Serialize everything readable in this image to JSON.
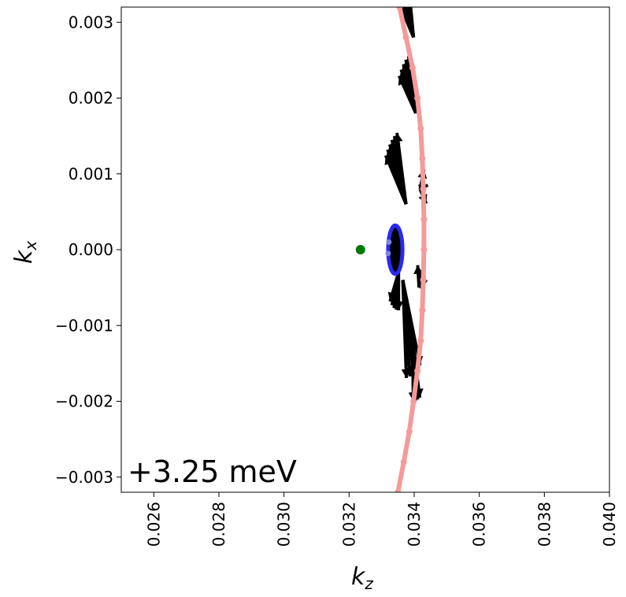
{
  "chart_data": {
    "type": "scatter",
    "title": "",
    "xlabel": "k",
    "xlabel_sub": "z",
    "ylabel": "k",
    "ylabel_sub": "x",
    "xlim": [
      0.025,
      0.04
    ],
    "ylim": [
      -0.0032,
      0.0032
    ],
    "xticks": [
      0.026,
      0.028,
      0.03,
      0.032,
      0.034,
      0.036,
      0.038,
      0.04
    ],
    "xtick_labels": [
      "0.026",
      "0.028",
      "0.030",
      "0.032",
      "0.034",
      "0.036",
      "0.038",
      "0.040"
    ],
    "yticks": [
      0.003,
      0.002,
      0.001,
      0.0,
      -0.001,
      -0.002,
      -0.003
    ],
    "ytick_labels": [
      "0.003",
      "0.002",
      "0.001",
      "0.000",
      "−0.001",
      "−0.002",
      "−0.003"
    ],
    "annotation": "+3.25 meV",
    "grid": false,
    "colors": {
      "pink_curve": "#f59a9a",
      "ellipse": "#2a2aee",
      "ellipse_light": "#8080ee",
      "arrows": "#000000",
      "green_point": "#007800"
    },
    "green_point": {
      "x": 0.03235,
      "y": 0.0
    },
    "ellipse": {
      "cx": 0.03342,
      "cy": 0.0,
      "rx": 0.00022,
      "ry": 0.00032
    },
    "pink_curve": [
      [
        0.03355,
        0.0032
      ],
      [
        0.03375,
        0.0028
      ],
      [
        0.03395,
        0.0024
      ],
      [
        0.0341,
        0.002
      ],
      [
        0.0342,
        0.0016
      ],
      [
        0.03425,
        0.0012
      ],
      [
        0.03428,
        0.0008
      ],
      [
        0.0343,
        0.0004
      ],
      [
        0.0343,
        0.0
      ],
      [
        0.03428,
        -0.0004
      ],
      [
        0.03425,
        -0.0008
      ],
      [
        0.0342,
        -0.0012
      ],
      [
        0.0341,
        -0.0016
      ],
      [
        0.03398,
        -0.002
      ],
      [
        0.03385,
        -0.0024
      ],
      [
        0.03368,
        -0.0028
      ],
      [
        0.0335,
        -0.0032
      ]
    ],
    "arrow_fans": [
      {
        "x": 0.03398,
        "y": 0.0028,
        "angles": [
          105,
          110,
          116,
          122,
          128,
          134,
          140
        ],
        "length": 0.0012
      },
      {
        "x": 0.03405,
        "y": 0.0018,
        "angles": [
          110,
          118,
          126,
          134,
          142
        ],
        "length": 0.0008
      },
      {
        "x": 0.03375,
        "y": 0.0006,
        "angles": [
          110,
          116,
          122,
          128,
          134,
          140
        ],
        "length": 0.001
      },
      {
        "x": 0.03352,
        "y": -0.0003,
        "angles": [
          230,
          240,
          250,
          260,
          270
        ],
        "length": 0.0005
      },
      {
        "x": 0.03365,
        "y": -0.0004,
        "angles": [
          -60,
          -66,
          -72,
          -78,
          -84
        ],
        "length": 0.0013
      },
      {
        "x": 0.03395,
        "y": -0.0012,
        "angles": [
          -70,
          -76,
          -82,
          -88
        ],
        "length": 0.0008
      },
      {
        "x": 0.03415,
        "y": -0.0005,
        "angles": [
          20,
          60,
          100
        ],
        "length": 0.0003
      },
      {
        "x": 0.03418,
        "y": 0.0008,
        "angles": [
          -40,
          10,
          60
        ],
        "length": 0.0003
      }
    ]
  }
}
